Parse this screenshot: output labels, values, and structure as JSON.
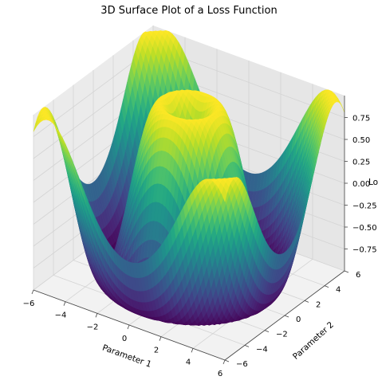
{
  "chart_data": {
    "type": "surface3d",
    "title": "3D Surface Plot of a Loss Function",
    "xlabel": "Parameter 1",
    "ylabel": "Parameter 2",
    "zlabel": "Loss",
    "function": "sin(sqrt(x^2 + y^2))",
    "xlim": [
      -6,
      6
    ],
    "ylim": [
      -6,
      6
    ],
    "zlim": [
      -1,
      1
    ],
    "x_ticks": [
      -6,
      -4,
      -2,
      0,
      2,
      4,
      6
    ],
    "y_ticks": [
      -6,
      -4,
      -2,
      0,
      2,
      4,
      6
    ],
    "z_ticks": [
      -0.75,
      -0.5,
      -0.25,
      0.0,
      0.25,
      0.5,
      0.75
    ],
    "z_tick_labels": [
      "−0.75",
      "−0.50",
      "−0.25",
      "0.00",
      "0.25",
      "0.50",
      "0.75"
    ],
    "x_tick_labels": [
      "−6",
      "−4",
      "−2",
      "0",
      "2",
      "4",
      "6"
    ],
    "y_tick_labels": [
      "−6",
      "−4",
      "−2",
      "0",
      "2",
      "4",
      "6"
    ],
    "colormap": "viridis",
    "grid": true
  }
}
